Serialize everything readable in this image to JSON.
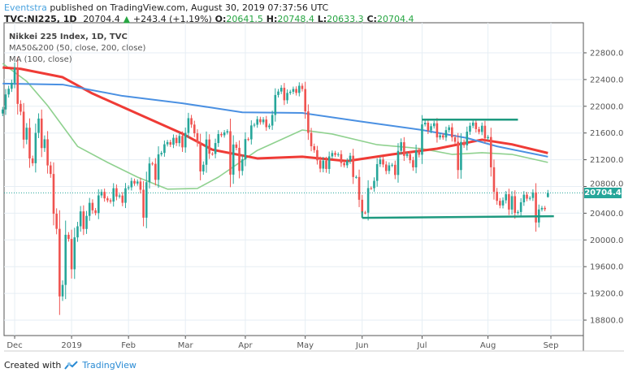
{
  "header": {
    "author": "Eventstra",
    "published": "published on TradingView.com, August 30, 2019 07:37:56 UTC",
    "symbol": "TVC:NI225, 1D",
    "price": "20704.4",
    "change": "+243.4 (+1.19%)",
    "o_label": "O:",
    "o": "20641.5",
    "h_label": "H:",
    "h": "20748.4",
    "l_label": "L:",
    "l": "20633.3",
    "c_label": "C:",
    "c": "20704.4"
  },
  "legend": {
    "title": "Nikkei 225 Index, 1D, TVC",
    "ma1": "MA50&200 (50, close, 200, close)",
    "ma2": "MA (100, close)"
  },
  "footer": {
    "created": "Created with",
    "brand": "TradingView"
  },
  "colors": {
    "up": "#26a69a",
    "down": "#ef5350",
    "ma50": "#8fd18f",
    "ma100": "#ef3b36",
    "ma200": "#4a90e2",
    "trend": "#1e9a80",
    "last": "#26a69a"
  },
  "chart_data": {
    "type": "candlestick",
    "last_price": 20704.4,
    "last_price_label": "20704.4",
    "last_ohlc": [
      20641.5,
      20748.4,
      20633.3,
      20704.4
    ],
    "ylim": [
      18700,
      23200
    ],
    "yticks": [
      "22800.0",
      "22400.0",
      "22000.0",
      "21600.0",
      "21200.0",
      "20800.0",
      "20400.0",
      "20000.0",
      "19600.0",
      "19200.0",
      "18800.0"
    ],
    "months": [
      {
        "label": "",
        "closes": [
          21952,
          22177,
          22262,
          22351
        ]
      },
      {
        "label": "Dec",
        "closes": [
          22574,
          22036,
          21919,
          21501,
          21679,
          21219,
          21148,
          21602,
          21816,
          21375,
          21506,
          21115,
          20987,
          20392,
          20166,
          19155,
          19327,
          20077,
          20015
        ]
      },
      {
        "label": "2019",
        "closes": [
          19561,
          20038,
          20204,
          20427,
          20164,
          20360,
          20555,
          20443,
          20402,
          20666,
          20719,
          20622,
          20593,
          20574,
          20774,
          20649,
          20664,
          20556,
          20773
        ]
      },
      {
        "label": "Feb",
        "closes": [
          20788,
          20883,
          20844,
          20874,
          20751,
          20333,
          20864,
          21144,
          21139,
          20900,
          21281,
          21302,
          21431,
          21464,
          21425,
          21528,
          21449,
          21556,
          21385
        ]
      },
      {
        "label": "Mar",
        "closes": [
          21602,
          21822,
          21726,
          21596,
          21456,
          21025,
          21125,
          21503,
          21290,
          21287,
          21450,
          21584,
          21566,
          21608,
          21627,
          20977,
          21428,
          21378,
          21033,
          21205
        ]
      },
      {
        "label": "Apr",
        "closes": [
          21509,
          21505,
          21713,
          21724,
          21807,
          21761,
          21802,
          21687,
          21711,
          21870,
          22169,
          22221,
          22277,
          22090,
          22200,
          22217,
          22259,
          22200,
          22307,
          22258
        ]
      },
      {
        "label": "May",
        "closes": [
          21923,
          21602,
          21402,
          21344,
          21191,
          21067,
          21188,
          21062,
          21250,
          21301,
          21272,
          21283,
          21151,
          21117,
          21182,
          21260,
          20942,
          20942,
          20601
        ]
      },
      {
        "label": "Jun",
        "closes": [
          20410,
          20408,
          20776,
          20774,
          20884,
          21134,
          21204,
          21129,
          21032,
          21116,
          21124,
          20972,
          21333,
          21462,
          21258,
          21285,
          21193,
          21086,
          21338,
          21275
        ]
      },
      {
        "label": "Jul",
        "closes": [
          21729,
          21754,
          21638,
          21702,
          21746,
          21534,
          21565,
          21533,
          21643,
          21685,
          21535,
          21469,
          21046,
          21466,
          21416,
          21620,
          21709,
          21756,
          21658,
          21616,
          21709,
          21521
        ]
      },
      {
        "label": "Aug",
        "closes": [
          21540,
          21087,
          20720,
          20585,
          20516,
          20593,
          20684,
          20455,
          20655,
          20405,
          20418,
          20563,
          20677,
          20618,
          20628,
          20711,
          20261,
          20456,
          20479,
          20460,
          20704.4
        ]
      },
      {
        "label": "Sep",
        "closes": []
      }
    ],
    "series": [
      {
        "name": "MA50",
        "points": [
          [
            0,
            22640
          ],
          [
            8,
            22375
          ],
          [
            15,
            22010
          ],
          [
            25,
            21400
          ],
          [
            35,
            21160
          ],
          [
            45,
            20940
          ],
          [
            55,
            20760
          ],
          [
            65,
            20770
          ],
          [
            72,
            20940
          ],
          [
            85,
            21340
          ],
          [
            100,
            21645
          ],
          [
            110,
            21585
          ],
          [
            125,
            21425
          ],
          [
            140,
            21365
          ],
          [
            150,
            21280
          ],
          [
            160,
            21305
          ],
          [
            170,
            21280
          ],
          [
            182,
            21160
          ]
        ]
      },
      {
        "name": "MA100",
        "points": [
          [
            0,
            22580
          ],
          [
            6,
            22560
          ],
          [
            20,
            22435
          ],
          [
            30,
            22190
          ],
          [
            45,
            21890
          ],
          [
            60,
            21590
          ],
          [
            70,
            21350
          ],
          [
            85,
            21220
          ],
          [
            100,
            21245
          ],
          [
            115,
            21180
          ],
          [
            130,
            21280
          ],
          [
            145,
            21365
          ],
          [
            160,
            21500
          ],
          [
            170,
            21430
          ],
          [
            182,
            21300
          ]
        ]
      },
      {
        "name": "MA200",
        "points": [
          [
            0,
            22340
          ],
          [
            20,
            22325
          ],
          [
            40,
            22155
          ],
          [
            60,
            22045
          ],
          [
            80,
            21910
          ],
          [
            100,
            21900
          ],
          [
            120,
            21770
          ],
          [
            140,
            21645
          ],
          [
            155,
            21525
          ],
          [
            165,
            21400
          ],
          [
            182,
            21245
          ]
        ]
      }
    ],
    "trendlines": [
      {
        "from": [
          140,
          21800
        ],
        "to": [
          172,
          21800
        ]
      },
      {
        "from": [
          120,
          20330
        ],
        "to": [
          184,
          20355
        ]
      }
    ]
  }
}
